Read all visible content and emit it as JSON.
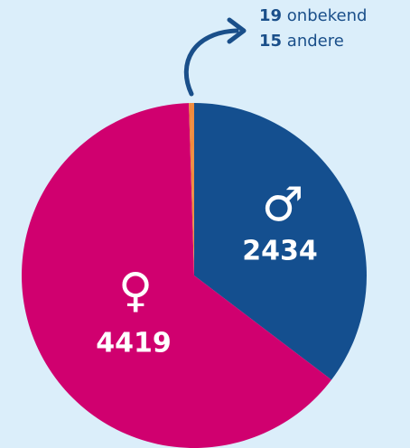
{
  "chart_data": {
    "type": "pie",
    "categories": [
      "♂",
      "♀",
      "onbekend",
      "andere"
    ],
    "values": [
      2434,
      4419,
      19,
      15
    ],
    "colors": [
      "#144f8f",
      "#d0006f",
      "#f08a3c",
      "#f08a3c"
    ]
  }
}
